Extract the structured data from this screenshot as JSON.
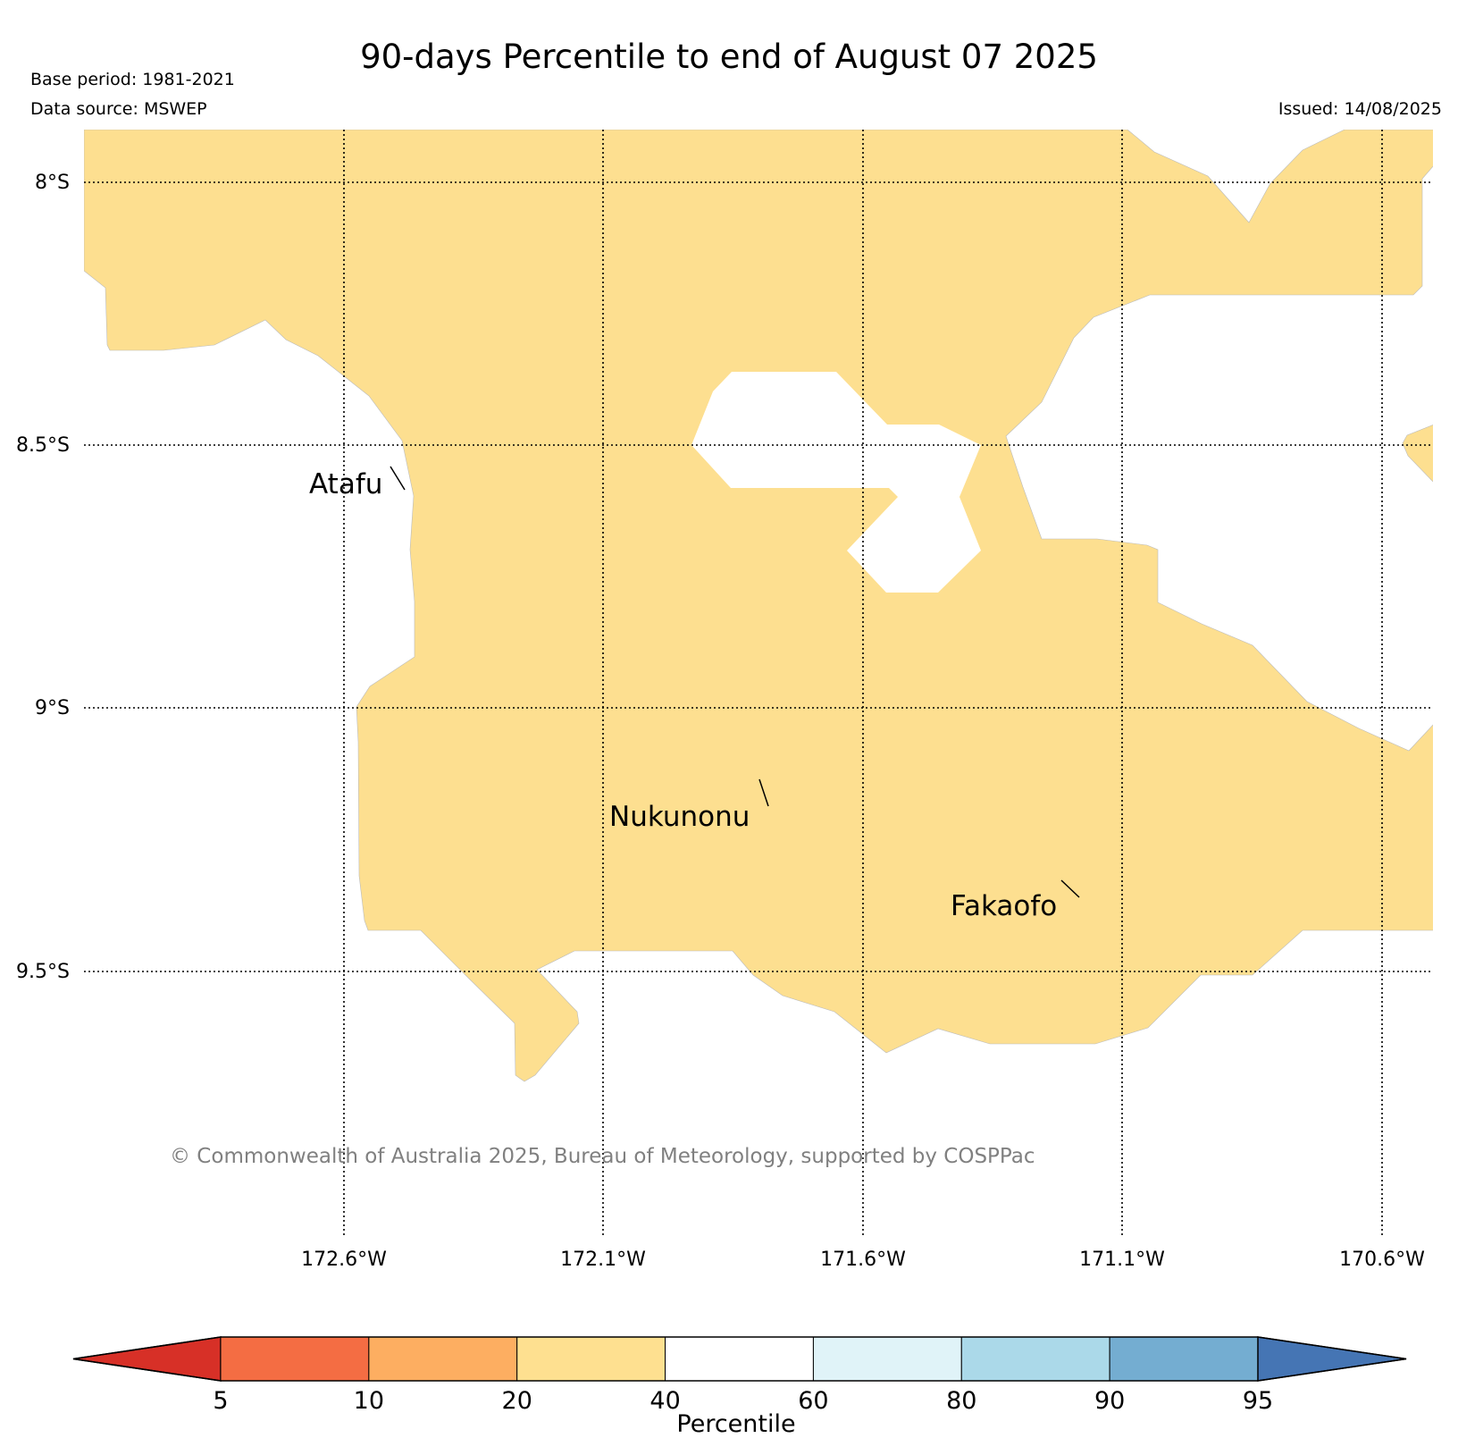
{
  "title": "90-days Percentile to end of August 07 2025",
  "base_period": "Base period: 1981-2021",
  "data_source": "Data source: MSWEP",
  "issued": "Issued: 14/08/2025",
  "copyright": "© Commonwealth of Australia 2025, Bureau of Meteorology, supported by COSPPac",
  "colors": {
    "pct_20_40": "#fddf90",
    "grid": "#000000",
    "copyright_text": "#808080"
  },
  "latitude_labels": [
    "8°S",
    "8.5°S",
    "9°S",
    "9.5°S"
  ],
  "longitude_labels": [
    "172.6°W",
    "172.1°W",
    "171.6°W",
    "171.1°W",
    "170.6°W"
  ],
  "places": [
    {
      "name": "Atafu"
    },
    {
      "name": "Nukunonu"
    },
    {
      "name": "Fakaofo"
    }
  ],
  "colorbar": {
    "label": "Percentile",
    "ticks": [
      "5",
      "10",
      "20",
      "40",
      "60",
      "80",
      "90",
      "95"
    ],
    "colors": [
      "#d73027",
      "#f46d43",
      "#fdae61",
      "#fee090",
      "#ffffff",
      "#e0f3f8",
      "#abd9e9",
      "#74add1",
      "#4575b4"
    ]
  }
}
